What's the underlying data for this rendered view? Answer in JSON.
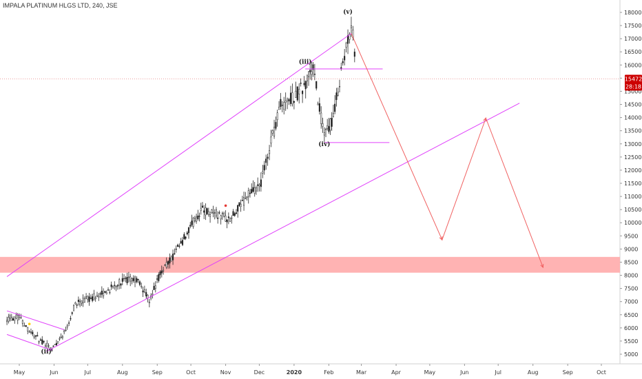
{
  "header": {
    "title": "IMPALA PLATINUM HLGS LTD, 240, JSE"
  },
  "price_tag": {
    "last": "15472",
    "countdown": "28:18",
    "color": "#cc0000"
  },
  "colors": {
    "channel": "#e040fb",
    "projection": "#f06060",
    "zone": "#ffb3b3",
    "candle": "#222222",
    "axis_text": "#333333"
  },
  "chart_data": {
    "type": "candlestick",
    "title": "IMPALA PLATINUM HLGS LTD, 240, JSE",
    "yticks": [
      5000,
      5500,
      6000,
      6500,
      7000,
      7500,
      8000,
      8500,
      9000,
      9500,
      10000,
      10500,
      11000,
      11500,
      12000,
      12500,
      13000,
      13500,
      14000,
      14500,
      15000,
      15500,
      16000,
      16500,
      17000,
      17500,
      18000
    ],
    "ylim": [
      4850,
      18100
    ],
    "x_labels": [
      "May",
      "Jun",
      "Jul",
      "Aug",
      "Sep",
      "Oct",
      "Nov",
      "Dec",
      "2020",
      "Feb",
      "Mar",
      "Apr",
      "May",
      "Jun",
      "Jul",
      "Aug",
      "Sep",
      "Oct"
    ],
    "x_label_months": [
      "2019-05",
      "2019-06",
      "2019-07",
      "2019-08",
      "2019-09",
      "2019-10",
      "2019-11",
      "2019-12",
      "2020-01",
      "2020-02",
      "2020-03",
      "2020-04",
      "2020-05",
      "2020-06",
      "2020-07",
      "2020-08",
      "2020-09",
      "2020-10"
    ],
    "price_path": [
      {
        "x": "2019-04-20",
        "y": 6350
      },
      {
        "x": "2019-05-01",
        "y": 6400
      },
      {
        "x": "2019-05-10",
        "y": 5900
      },
      {
        "x": "2019-05-20",
        "y": 5500
      },
      {
        "x": "2019-05-30",
        "y": 5200
      },
      {
        "x": "2019-06-10",
        "y": 5800
      },
      {
        "x": "2019-06-20",
        "y": 6900
      },
      {
        "x": "2019-07-01",
        "y": 7100
      },
      {
        "x": "2019-07-15",
        "y": 7300
      },
      {
        "x": "2019-08-01",
        "y": 7800
      },
      {
        "x": "2019-08-15",
        "y": 7800
      },
      {
        "x": "2019-08-25",
        "y": 7050
      },
      {
        "x": "2019-09-05",
        "y": 8200
      },
      {
        "x": "2019-09-15",
        "y": 8700
      },
      {
        "x": "2019-09-25",
        "y": 9400
      },
      {
        "x": "2019-10-10",
        "y": 10500
      },
      {
        "x": "2019-10-25",
        "y": 10300
      },
      {
        "x": "2019-11-05",
        "y": 10100
      },
      {
        "x": "2019-11-20",
        "y": 11000
      },
      {
        "x": "2019-12-01",
        "y": 11300
      },
      {
        "x": "2019-12-10",
        "y": 12800
      },
      {
        "x": "2019-12-20",
        "y": 14500
      },
      {
        "x": "2020-01-01",
        "y": 14800
      },
      {
        "x": "2020-01-10",
        "y": 15200
      },
      {
        "x": "2020-01-18",
        "y": 15900
      },
      {
        "x": "2020-01-28",
        "y": 13200
      },
      {
        "x": "2020-02-05",
        "y": 14000
      },
      {
        "x": "2020-02-12",
        "y": 15800
      },
      {
        "x": "2020-02-18",
        "y": 16900
      },
      {
        "x": "2020-02-21",
        "y": 17600
      },
      {
        "x": "2020-02-24",
        "y": 16500
      },
      {
        "x": "2020-02-26",
        "y": 15472
      }
    ],
    "wave_labels": [
      {
        "text": "(ii)",
        "x": "2019-05-25",
        "y": 5020
      },
      {
        "text": "(iii)",
        "x": "2020-01-11",
        "y": 16050
      },
      {
        "text": "(iv)",
        "x": "2020-01-28",
        "y": 12920
      },
      {
        "text": "(v)",
        "x": "2020-02-18",
        "y": 17950
      }
    ],
    "channel_lines": [
      {
        "name": "upper",
        "from": {
          "x": "2019-04-20",
          "y": 7950
        },
        "to": {
          "x": "2020-02-21",
          "y": 17200
        }
      },
      {
        "name": "lower",
        "from": {
          "x": "2019-05-25",
          "y": 5100
        },
        "to": {
          "x": "2020-07-20",
          "y": 14550
        }
      },
      {
        "name": "wedge-top",
        "from": {
          "x": "2019-04-20",
          "y": 6650
        },
        "to": {
          "x": "2019-06-10",
          "y": 5930
        }
      },
      {
        "name": "wedge-bottom",
        "from": {
          "x": "2019-04-20",
          "y": 5750
        },
        "to": {
          "x": "2019-05-30",
          "y": 5150
        }
      }
    ],
    "horizontal_lines": [
      {
        "name": "iii-level",
        "y": 15850,
        "from": "2020-01-11",
        "to": "2020-03-20"
      },
      {
        "name": "iv-level",
        "y": 13050,
        "from": "2020-01-28",
        "to": "2020-03-26"
      }
    ],
    "support_zone": {
      "low": 8100,
      "high": 8700
    },
    "projection_path": [
      {
        "x": "2020-02-21",
        "y": 17200
      },
      {
        "x": "2020-05-12",
        "y": 9350
      },
      {
        "x": "2020-06-20",
        "y": 13980
      },
      {
        "x": "2020-08-10",
        "y": 8300
      }
    ],
    "last_price": 15472,
    "markers": [
      {
        "x": "2019-05-10",
        "y": 6150,
        "color": "#ffcc00"
      },
      {
        "x": "2019-11-01",
        "y": 10650,
        "color": "#e53935"
      }
    ]
  }
}
